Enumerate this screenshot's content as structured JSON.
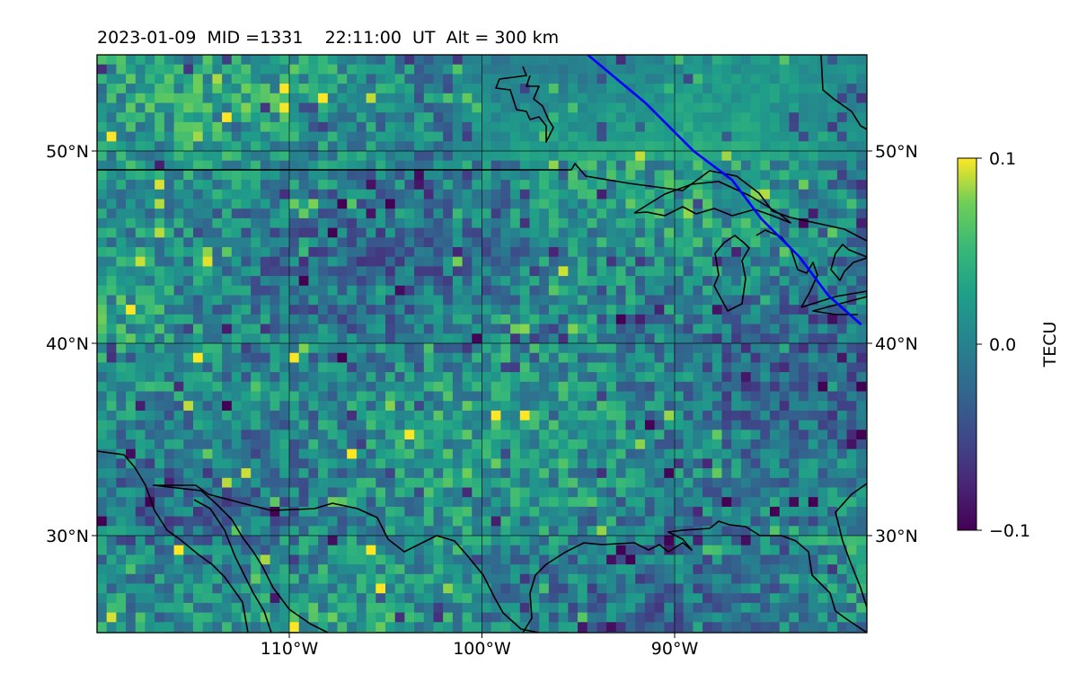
{
  "chart_data": {
    "type": "heatmap",
    "title": "2023-01-09  MID =1331    22:11:00  UT  Alt = 300 km",
    "projection": "equirectangular map",
    "lon_range": [
      -120,
      -80
    ],
    "lat_range": [
      25,
      55
    ],
    "grid": true,
    "x_tick_values": [
      -110,
      -100,
      -90
    ],
    "x_tick_labels": [
      "110°W",
      "100°W",
      "90°W"
    ],
    "y_tick_values": [
      30,
      40,
      50
    ],
    "y_tick_labels": [
      "30°N",
      "40°N",
      "50°N"
    ],
    "colormap": "viridis",
    "colorbar": {
      "label": "TECU",
      "vmin": -0.1,
      "vmax": 0.1,
      "tick_labels": [
        "−0.1",
        "0.0",
        "0.1"
      ],
      "tick_values": [
        -0.1,
        0.0,
        0.1
      ]
    },
    "field_description": "noisy differential TEC field; yellow (positive) patches concentrated toward the west and along the Gulf coast, dark (negative) patches scattered across the central US",
    "track": {
      "color": "#0000ff",
      "points_lonlat": [
        [
          -94.5,
          55
        ],
        [
          -91.5,
          52.5
        ],
        [
          -89,
          50
        ],
        [
          -87,
          48.5
        ],
        [
          -85.5,
          46.5
        ],
        [
          -83.5,
          44.5
        ],
        [
          -82,
          42.5
        ],
        [
          -80.3,
          41
        ]
      ]
    },
    "coastlines_color": "#000000"
  }
}
